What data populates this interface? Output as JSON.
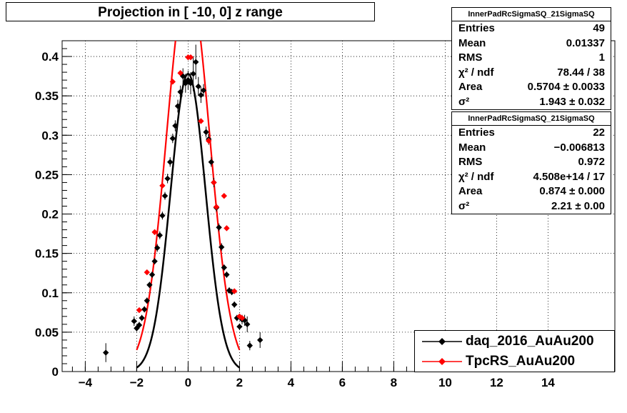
{
  "chart_data": {
    "type": "scatter",
    "title": "Projection in [ -10,   0] z range",
    "xlabel": "",
    "ylabel": "",
    "xlim": [
      -4.9,
      16.6
    ],
    "ylim": [
      0,
      0.42
    ],
    "x_ticks": [
      -4,
      -2,
      0,
      2,
      4,
      6,
      8,
      10,
      12,
      14
    ],
    "x_tick_labels": [
      "−4",
      "−2",
      "0",
      "2",
      "4",
      "6",
      "8",
      "10",
      "12",
      "14"
    ],
    "y_ticks": [
      0,
      0.05,
      0.1,
      0.15,
      0.2,
      0.25,
      0.3,
      0.35,
      0.4
    ],
    "y_tick_labels": [
      "0",
      "0.05",
      "0.1",
      "0.15",
      "0.2",
      "0.25",
      "0.3",
      "0.35",
      "0.4"
    ],
    "grid": true,
    "legend_position": "bottom-right",
    "series": [
      {
        "name": "daq_2016_AuAu200",
        "color": "#000000",
        "marker": "diamond",
        "points": [
          {
            "x": -3.2,
            "y": 0.024,
            "err": 0.012
          },
          {
            "x": -2.1,
            "y": 0.064,
            "err": 0.006
          },
          {
            "x": -2.0,
            "y": 0.055,
            "err": 0.004
          },
          {
            "x": -1.9,
            "y": 0.059,
            "err": 0.004
          },
          {
            "x": -1.8,
            "y": 0.068,
            "err": 0.004
          },
          {
            "x": -1.7,
            "y": 0.079,
            "err": 0.004
          },
          {
            "x": -1.6,
            "y": 0.09,
            "err": 0.004
          },
          {
            "x": -1.5,
            "y": 0.11,
            "err": 0.004
          },
          {
            "x": -1.4,
            "y": 0.123,
            "err": 0.004
          },
          {
            "x": -1.3,
            "y": 0.14,
            "err": 0.004
          },
          {
            "x": -1.2,
            "y": 0.157,
            "err": 0.005
          },
          {
            "x": -1.1,
            "y": 0.173,
            "err": 0.005
          },
          {
            "x": -1.0,
            "y": 0.198,
            "err": 0.005
          },
          {
            "x": -0.9,
            "y": 0.223,
            "err": 0.005
          },
          {
            "x": -0.8,
            "y": 0.245,
            "err": 0.006
          },
          {
            "x": -0.7,
            "y": 0.266,
            "err": 0.006
          },
          {
            "x": -0.6,
            "y": 0.296,
            "err": 0.006
          },
          {
            "x": -0.5,
            "y": 0.312,
            "err": 0.007
          },
          {
            "x": -0.4,
            "y": 0.337,
            "err": 0.008
          },
          {
            "x": -0.3,
            "y": 0.355,
            "err": 0.008
          },
          {
            "x": -0.2,
            "y": 0.375,
            "err": 0.01
          },
          {
            "x": -0.1,
            "y": 0.366,
            "err": 0.012
          },
          {
            "x": 0.0,
            "y": 0.37,
            "err": 0.012
          },
          {
            "x": 0.1,
            "y": 0.366,
            "err": 0.014
          },
          {
            "x": 0.2,
            "y": 0.378,
            "err": 0.022
          },
          {
            "x": 0.3,
            "y": 0.393,
            "err": 0.022
          },
          {
            "x": 0.4,
            "y": 0.362,
            "err": 0.012
          },
          {
            "x": 0.5,
            "y": 0.351,
            "err": 0.01
          },
          {
            "x": 0.6,
            "y": 0.357,
            "err": 0.008
          },
          {
            "x": 0.7,
            "y": 0.304,
            "err": 0.007
          },
          {
            "x": 0.8,
            "y": 0.295,
            "err": 0.007
          },
          {
            "x": 0.9,
            "y": 0.266,
            "err": 0.006
          },
          {
            "x": 1.0,
            "y": 0.24,
            "err": 0.006
          },
          {
            "x": 1.1,
            "y": 0.208,
            "err": 0.005
          },
          {
            "x": 1.2,
            "y": 0.183,
            "err": 0.005
          },
          {
            "x": 1.3,
            "y": 0.158,
            "err": 0.005
          },
          {
            "x": 1.4,
            "y": 0.132,
            "err": 0.004
          },
          {
            "x": 1.5,
            "y": 0.123,
            "err": 0.004
          },
          {
            "x": 1.6,
            "y": 0.103,
            "err": 0.004
          },
          {
            "x": 1.7,
            "y": 0.101,
            "err": 0.004
          },
          {
            "x": 1.8,
            "y": 0.085,
            "err": 0.004
          },
          {
            "x": 1.9,
            "y": 0.068,
            "err": 0.004
          },
          {
            "x": 2.0,
            "y": 0.057,
            "err": 0.004
          },
          {
            "x": 2.1,
            "y": 0.066,
            "err": 0.006
          },
          {
            "x": 2.2,
            "y": 0.065,
            "err": 0.007
          },
          {
            "x": 2.3,
            "y": 0.06,
            "err": 0.01
          },
          {
            "x": 2.4,
            "y": 0.033,
            "err": 0.006
          },
          {
            "x": 2.8,
            "y": 0.04,
            "err": 0.01
          }
        ],
        "fit": {
          "amplitude": 0.378,
          "mean": 0.0,
          "sigma": 0.68,
          "range": [
            -2.0,
            2.0
          ]
        }
      },
      {
        "name": "TpcRS_AuAu200",
        "color": "#ff0000",
        "marker": "diamond",
        "points": [
          {
            "x": -1.9,
            "y": 0.078
          },
          {
            "x": -1.6,
            "y": 0.126
          },
          {
            "x": -1.3,
            "y": 0.177
          },
          {
            "x": -1.0,
            "y": 0.236
          },
          {
            "x": -0.6,
            "y": 0.368
          },
          {
            "x": -0.3,
            "y": 0.379
          },
          {
            "x": 0.0,
            "y": 0.399
          },
          {
            "x": 0.1,
            "y": 0.399
          },
          {
            "x": 0.5,
            "y": 0.318
          },
          {
            "x": 0.8,
            "y": 0.293
          },
          {
            "x": 1.0,
            "y": 0.24
          },
          {
            "x": 1.1,
            "y": 0.209
          },
          {
            "x": 1.4,
            "y": 0.223
          },
          {
            "x": 1.5,
            "y": 0.182
          },
          {
            "x": 1.8,
            "y": 0.102
          },
          {
            "x": 2.0,
            "y": 0.07
          },
          {
            "x": 2.1,
            "y": 0.068
          }
        ],
        "fit": {
          "amplitude": 0.5,
          "mean": 0.0,
          "sigma": 0.83,
          "range": [
            -2.0,
            2.0
          ]
        }
      }
    ]
  },
  "stats": [
    {
      "title": "InnerPadRcSigmaSQ_21SigmaSQ",
      "rows": [
        {
          "key": "Entries",
          "value": "49"
        },
        {
          "key": "Mean",
          "value": "0.01337"
        },
        {
          "key": "RMS",
          "value": "1"
        },
        {
          "key": "χ² / ndf",
          "value": "78.44 / 38"
        },
        {
          "key": "Area",
          "value": "0.5704 ± 0.0033"
        },
        {
          "key": "σ²",
          "value": "1.943 ± 0.032"
        }
      ]
    },
    {
      "title": "InnerPadRcSigmaSQ_21SigmaSQ",
      "rows": [
        {
          "key": "Entries",
          "value": "22"
        },
        {
          "key": "Mean",
          "value": "−0.006813"
        },
        {
          "key": "RMS",
          "value": "0.972"
        },
        {
          "key": "χ² / ndf",
          "value": "4.508e+14 / 17"
        },
        {
          "key": "Area",
          "value": "0.874 ± 0.000"
        },
        {
          "key": "σ²",
          "value": "2.21 ± 0.00"
        }
      ]
    }
  ]
}
